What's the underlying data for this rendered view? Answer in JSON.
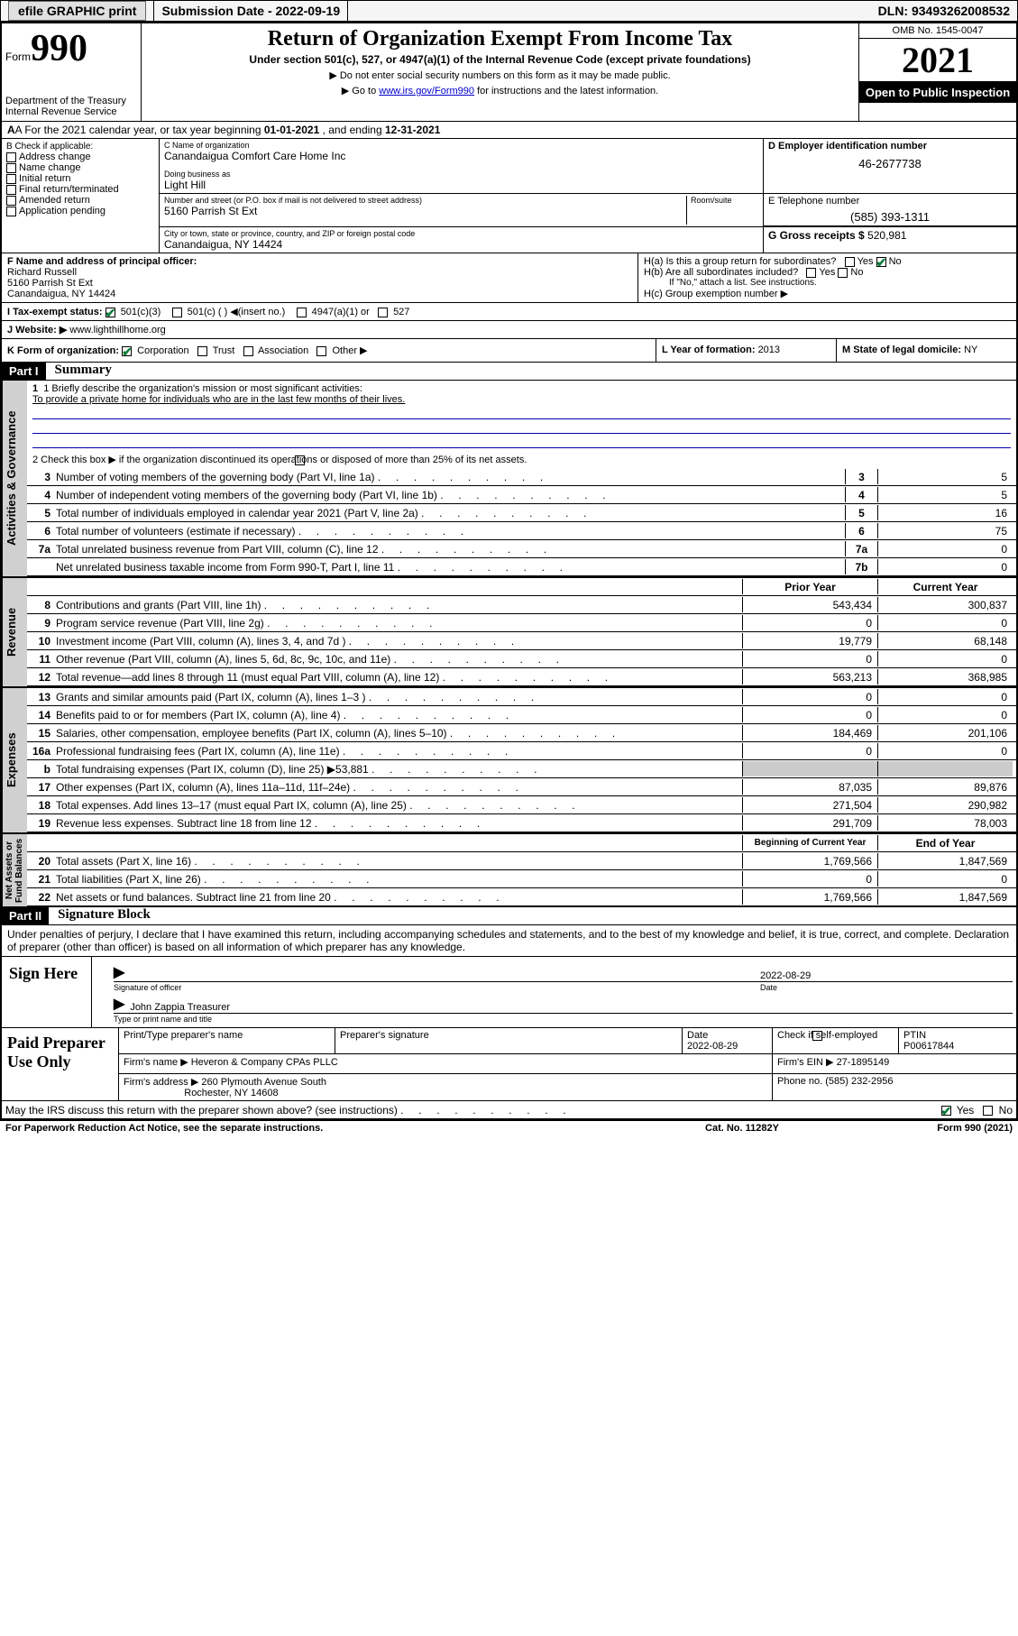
{
  "topbar": {
    "efile": "efile GRAPHIC print",
    "submission_label": "Submission Date - ",
    "submission_date": "2022-09-19",
    "dln_label": "DLN: ",
    "dln": "93493262008532"
  },
  "header": {
    "form_word": "Form",
    "form_num": "990",
    "title": "Return of Organization Exempt From Income Tax",
    "subtitle": "Under section 501(c), 527, or 4947(a)(1) of the Internal Revenue Code (except private foundations)",
    "note1": "▶ Do not enter social security numbers on this form as it may be made public.",
    "note2_pre": "▶ Go to ",
    "note2_link": "www.irs.gov/Form990",
    "note2_post": " for instructions and the latest information.",
    "dept": "Department of the Treasury\nInternal Revenue Service",
    "omb": "OMB No. 1545-0047",
    "year": "2021",
    "open": "Open to Public Inspection"
  },
  "rowA": {
    "label_pre": "A For the 2021 calendar year, or tax year beginning ",
    "begin": "01-01-2021",
    "label_mid": " , and ending ",
    "end": "12-31-2021"
  },
  "B": {
    "title": "B Check if applicable:",
    "items": [
      "Address change",
      "Name change",
      "Initial return",
      "Final return/terminated",
      "Amended return",
      "Application pending"
    ]
  },
  "C": {
    "name_lbl": "C Name of organization",
    "name": "Canandaigua Comfort Care Home Inc",
    "dba_lbl": "Doing business as",
    "dba": "Light Hill",
    "street_lbl": "Number and street (or P.O. box if mail is not delivered to street address)",
    "room_lbl": "Room/suite",
    "street": "5160 Parrish St Ext",
    "city_lbl": "City or town, state or province, country, and ZIP or foreign postal code",
    "city": "Canandaigua, NY  14424"
  },
  "D": {
    "lbl": "D Employer identification number",
    "val": "46-2677738"
  },
  "E": {
    "lbl": "E Telephone number",
    "val": "(585) 393-1311"
  },
  "G": {
    "lbl": "G Gross receipts $ ",
    "val": "520,981"
  },
  "F": {
    "lbl": "F  Name and address of principal officer:",
    "name": "Richard Russell",
    "addr1": "5160 Parrish St Ext",
    "addr2": "Canandaigua, NY  14424"
  },
  "H": {
    "a": "H(a)  Is this a group return for subordinates?",
    "b": "H(b)  Are all subordinates included?",
    "b_note": "If \"No,\" attach a list. See instructions.",
    "c": "H(c)  Group exemption number ▶",
    "yes": "Yes",
    "no": "No"
  },
  "I": {
    "lbl": "I     Tax-exempt status:",
    "opts": [
      "501(c)(3)",
      "501(c) (  ) ◀(insert no.)",
      "4947(a)(1) or",
      "527"
    ]
  },
  "J": {
    "lbl": "J    Website: ▶ ",
    "val": "www.lighthillhome.org"
  },
  "K": {
    "lbl": "K Form of organization:",
    "opts": [
      "Corporation",
      "Trust",
      "Association",
      "Other ▶"
    ]
  },
  "L": {
    "lbl": "L Year of formation: ",
    "val": "2013"
  },
  "M": {
    "lbl": "M State of legal domicile: ",
    "val": "NY"
  },
  "part1": {
    "hdr": "Part I",
    "title": "Summary",
    "line1_lbl": "1   Briefly describe the organization's mission or most significant activities:",
    "mission": "To provide a private home for individuals who are in the last few months of their lives.",
    "line2": "2   Check this box ▶      if the organization discontinued its operations or disposed of more than 25% of its net assets.",
    "prior_hdr": "Prior Year",
    "curr_hdr": "Current Year",
    "boy_hdr": "Beginning of Current Year",
    "eoy_hdr": "End of Year",
    "gov_lines": [
      {
        "n": "3",
        "t": "Number of voting members of the governing body (Part VI, line 1a)",
        "rn": "3",
        "v": "5"
      },
      {
        "n": "4",
        "t": "Number of independent voting members of the governing body (Part VI, line 1b)",
        "rn": "4",
        "v": "5"
      },
      {
        "n": "5",
        "t": "Total number of individuals employed in calendar year 2021 (Part V, line 2a)",
        "rn": "5",
        "v": "16"
      },
      {
        "n": "6",
        "t": "Total number of volunteers (estimate if necessary)",
        "rn": "6",
        "v": "75"
      },
      {
        "n": "7a",
        "t": "Total unrelated business revenue from Part VIII, column (C), line 12",
        "rn": "7a",
        "v": "0"
      },
      {
        "n": "",
        "t": "Net unrelated business taxable income from Form 990-T, Part I, line 11",
        "rn": "7b",
        "v": "0"
      }
    ],
    "rev_lines": [
      {
        "n": "8",
        "t": "Contributions and grants (Part VIII, line 1h)",
        "p": "543,434",
        "c": "300,837"
      },
      {
        "n": "9",
        "t": "Program service revenue (Part VIII, line 2g)",
        "p": "0",
        "c": "0"
      },
      {
        "n": "10",
        "t": "Investment income (Part VIII, column (A), lines 3, 4, and 7d )",
        "p": "19,779",
        "c": "68,148"
      },
      {
        "n": "11",
        "t": "Other revenue (Part VIII, column (A), lines 5, 6d, 8c, 9c, 10c, and 11e)",
        "p": "0",
        "c": "0"
      },
      {
        "n": "12",
        "t": "Total revenue—add lines 8 through 11 (must equal Part VIII, column (A), line 12)",
        "p": "563,213",
        "c": "368,985"
      }
    ],
    "exp_lines": [
      {
        "n": "13",
        "t": "Grants and similar amounts paid (Part IX, column (A), lines 1–3 )",
        "p": "0",
        "c": "0"
      },
      {
        "n": "14",
        "t": "Benefits paid to or for members (Part IX, column (A), line 4)",
        "p": "0",
        "c": "0"
      },
      {
        "n": "15",
        "t": "Salaries, other compensation, employee benefits (Part IX, column (A), lines 5–10)",
        "p": "184,469",
        "c": "201,106"
      },
      {
        "n": "16a",
        "t": "Professional fundraising fees (Part IX, column (A), line 11e)",
        "p": "0",
        "c": "0"
      },
      {
        "n": "b",
        "t": "Total fundraising expenses (Part IX, column (D), line 25) ▶53,881",
        "p": "",
        "c": "",
        "grey": true
      },
      {
        "n": "17",
        "t": "Other expenses (Part IX, column (A), lines 11a–11d, 11f–24e)",
        "p": "87,035",
        "c": "89,876"
      },
      {
        "n": "18",
        "t": "Total expenses. Add lines 13–17 (must equal Part IX, column (A), line 25)",
        "p": "271,504",
        "c": "290,982"
      },
      {
        "n": "19",
        "t": "Revenue less expenses. Subtract line 18 from line 12",
        "p": "291,709",
        "c": "78,003"
      }
    ],
    "na_lines": [
      {
        "n": "20",
        "t": "Total assets (Part X, line 16)",
        "p": "1,769,566",
        "c": "1,847,569"
      },
      {
        "n": "21",
        "t": "Total liabilities (Part X, line 26)",
        "p": "0",
        "c": "0"
      },
      {
        "n": "22",
        "t": "Net assets or fund balances. Subtract line 21 from line 20",
        "p": "1,769,566",
        "c": "1,847,569"
      }
    ],
    "vtabs": {
      "gov": "Activities & Governance",
      "rev": "Revenue",
      "exp": "Expenses",
      "na": "Net Assets or\nFund Balances"
    }
  },
  "part2": {
    "hdr": "Part II",
    "title": "Signature Block",
    "decl": "Under penalties of perjury, I declare that I have examined this return, including accompanying schedules and statements, and to the best of my knowledge and belief, it is true, correct, and complete. Declaration of preparer (other than officer) is based on all information of which preparer has any knowledge.",
    "sign_here": "Sign Here",
    "sig_officer_lbl": "Signature of officer",
    "date_lbl": "Date",
    "sig_date": "2022-08-29",
    "off_name": "John Zappia  Treasurer",
    "off_name_lbl": "Type or print name and title",
    "paid": "Paid Preparer Use Only",
    "prep_name_lbl": "Print/Type preparer's name",
    "prep_sig_lbl": "Preparer's signature",
    "prep_date": "2022-08-29",
    "self_emp": "Check        if self-employed",
    "ptin_lbl": "PTIN",
    "ptin": "P00617844",
    "firm_name_lbl": "Firm's name    ▶ ",
    "firm_name": "Heveron & Company CPAs PLLC",
    "firm_ein_lbl": "Firm's EIN ▶ ",
    "firm_ein": "27-1895149",
    "firm_addr_lbl": "Firm's address ▶ ",
    "firm_addr1": "260 Plymouth Avenue South",
    "firm_addr2": "Rochester, NY  14608",
    "phone_lbl": "Phone no. ",
    "phone": "(585) 232-2956",
    "may_discuss": "May the IRS discuss this return with the preparer shown above? (see instructions)"
  },
  "footer": {
    "pra": "For Paperwork Reduction Act Notice, see the separate instructions.",
    "cat": "Cat. No. 11282Y",
    "form": "Form 990 (2021)"
  }
}
